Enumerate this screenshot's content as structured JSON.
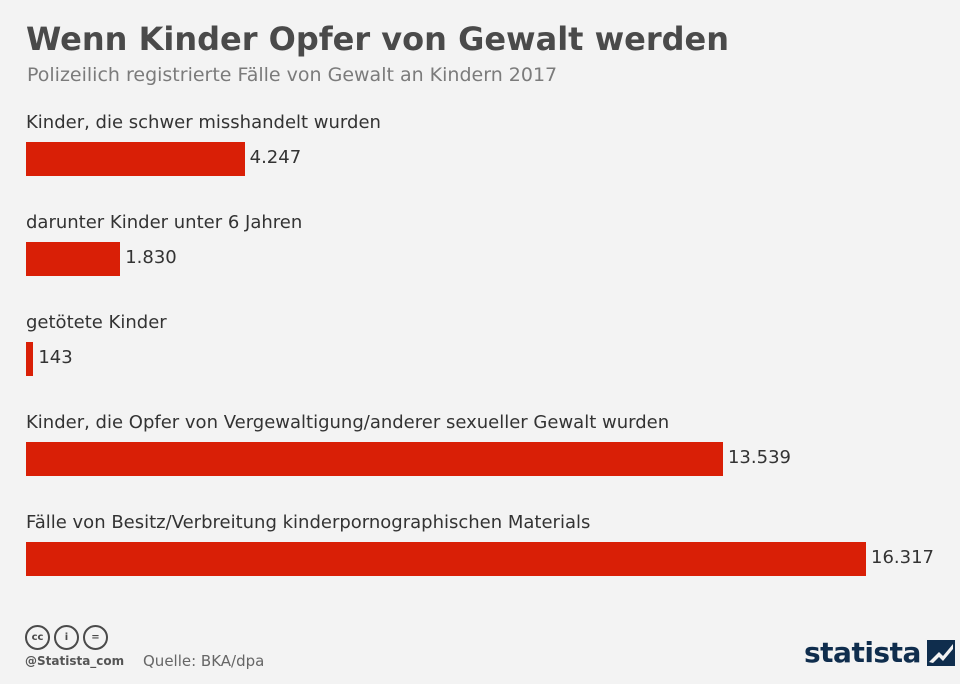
{
  "header": {
    "title": "Wenn Kinder Opfer von Gewalt werden",
    "subtitle": "Polizeilich registrierte Fälle von Gewalt an Kindern 2017"
  },
  "chart_data": {
    "type": "bar",
    "orientation": "horizontal",
    "title": "Wenn Kinder Opfer von Gewalt werden",
    "subtitle": "Polizeilich registrierte Fälle von Gewalt an Kindern 2017",
    "categories": [
      "Kinder, die schwer misshandelt wurden",
      "darunter Kinder unter 6 Jahren",
      "getötete Kinder",
      "Kinder, die Opfer von Vergewaltigung/anderer sexueller Gewalt wurden",
      "Fälle von Besitz/Verbreitung kinderpornographischen Materials"
    ],
    "values": [
      4247,
      1830,
      143,
      13539,
      16317
    ],
    "value_labels": [
      "4.247",
      "1.830",
      "143",
      "13.539",
      "16.317"
    ],
    "xlim": [
      0,
      16317
    ],
    "grid": false,
    "legend": "none",
    "bar_color": "#d91f06"
  },
  "footer": {
    "icons": [
      "cc-icon",
      "by-icon",
      "nd-icon"
    ],
    "icon_glyphs": [
      "cc",
      "i",
      "="
    ],
    "handle": "@Statista_com",
    "source": "Quelle: BKA/dpa",
    "brand": "statista",
    "brand_color": "#0f2d4d"
  }
}
